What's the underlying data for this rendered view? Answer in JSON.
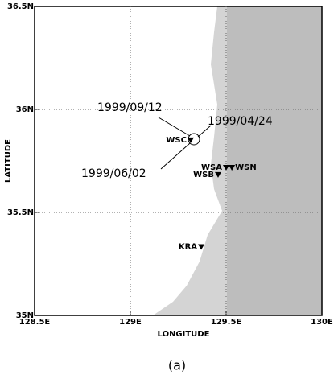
{
  "axes": {
    "xlabel": "LONGITUDE",
    "ylabel": "LATITUDE",
    "xlim": [
      128.5,
      130
    ],
    "ylim": [
      35,
      36.5
    ],
    "xticks": [
      {
        "value": 128.5,
        "label": "128.5E"
      },
      {
        "value": 129,
        "label": "129E"
      },
      {
        "value": 129.5,
        "label": "129.5E"
      },
      {
        "value": 130,
        "label": "130E"
      }
    ],
    "yticks": [
      {
        "value": 35,
        "label": "35N"
      },
      {
        "value": 35.5,
        "label": "35.5N"
      },
      {
        "value": 36,
        "label": "36N"
      },
      {
        "value": 36.5,
        "label": "36.5N"
      }
    ]
  },
  "stations": [
    {
      "name": "WSC",
      "lon": 129.315,
      "lat": 35.848
    },
    {
      "name": "WSA",
      "lon": 129.5,
      "lat": 35.715
    },
    {
      "name": "WSN",
      "lon": 129.53,
      "lat": 35.715
    },
    {
      "name": "WSB",
      "lon": 129.458,
      "lat": 35.68
    },
    {
      "name": "KRA",
      "lon": 129.37,
      "lat": 35.33
    }
  ],
  "dates": [
    "1999/09/12",
    "1999/04/24",
    "1999/06/02"
  ],
  "caption": "(a)"
}
